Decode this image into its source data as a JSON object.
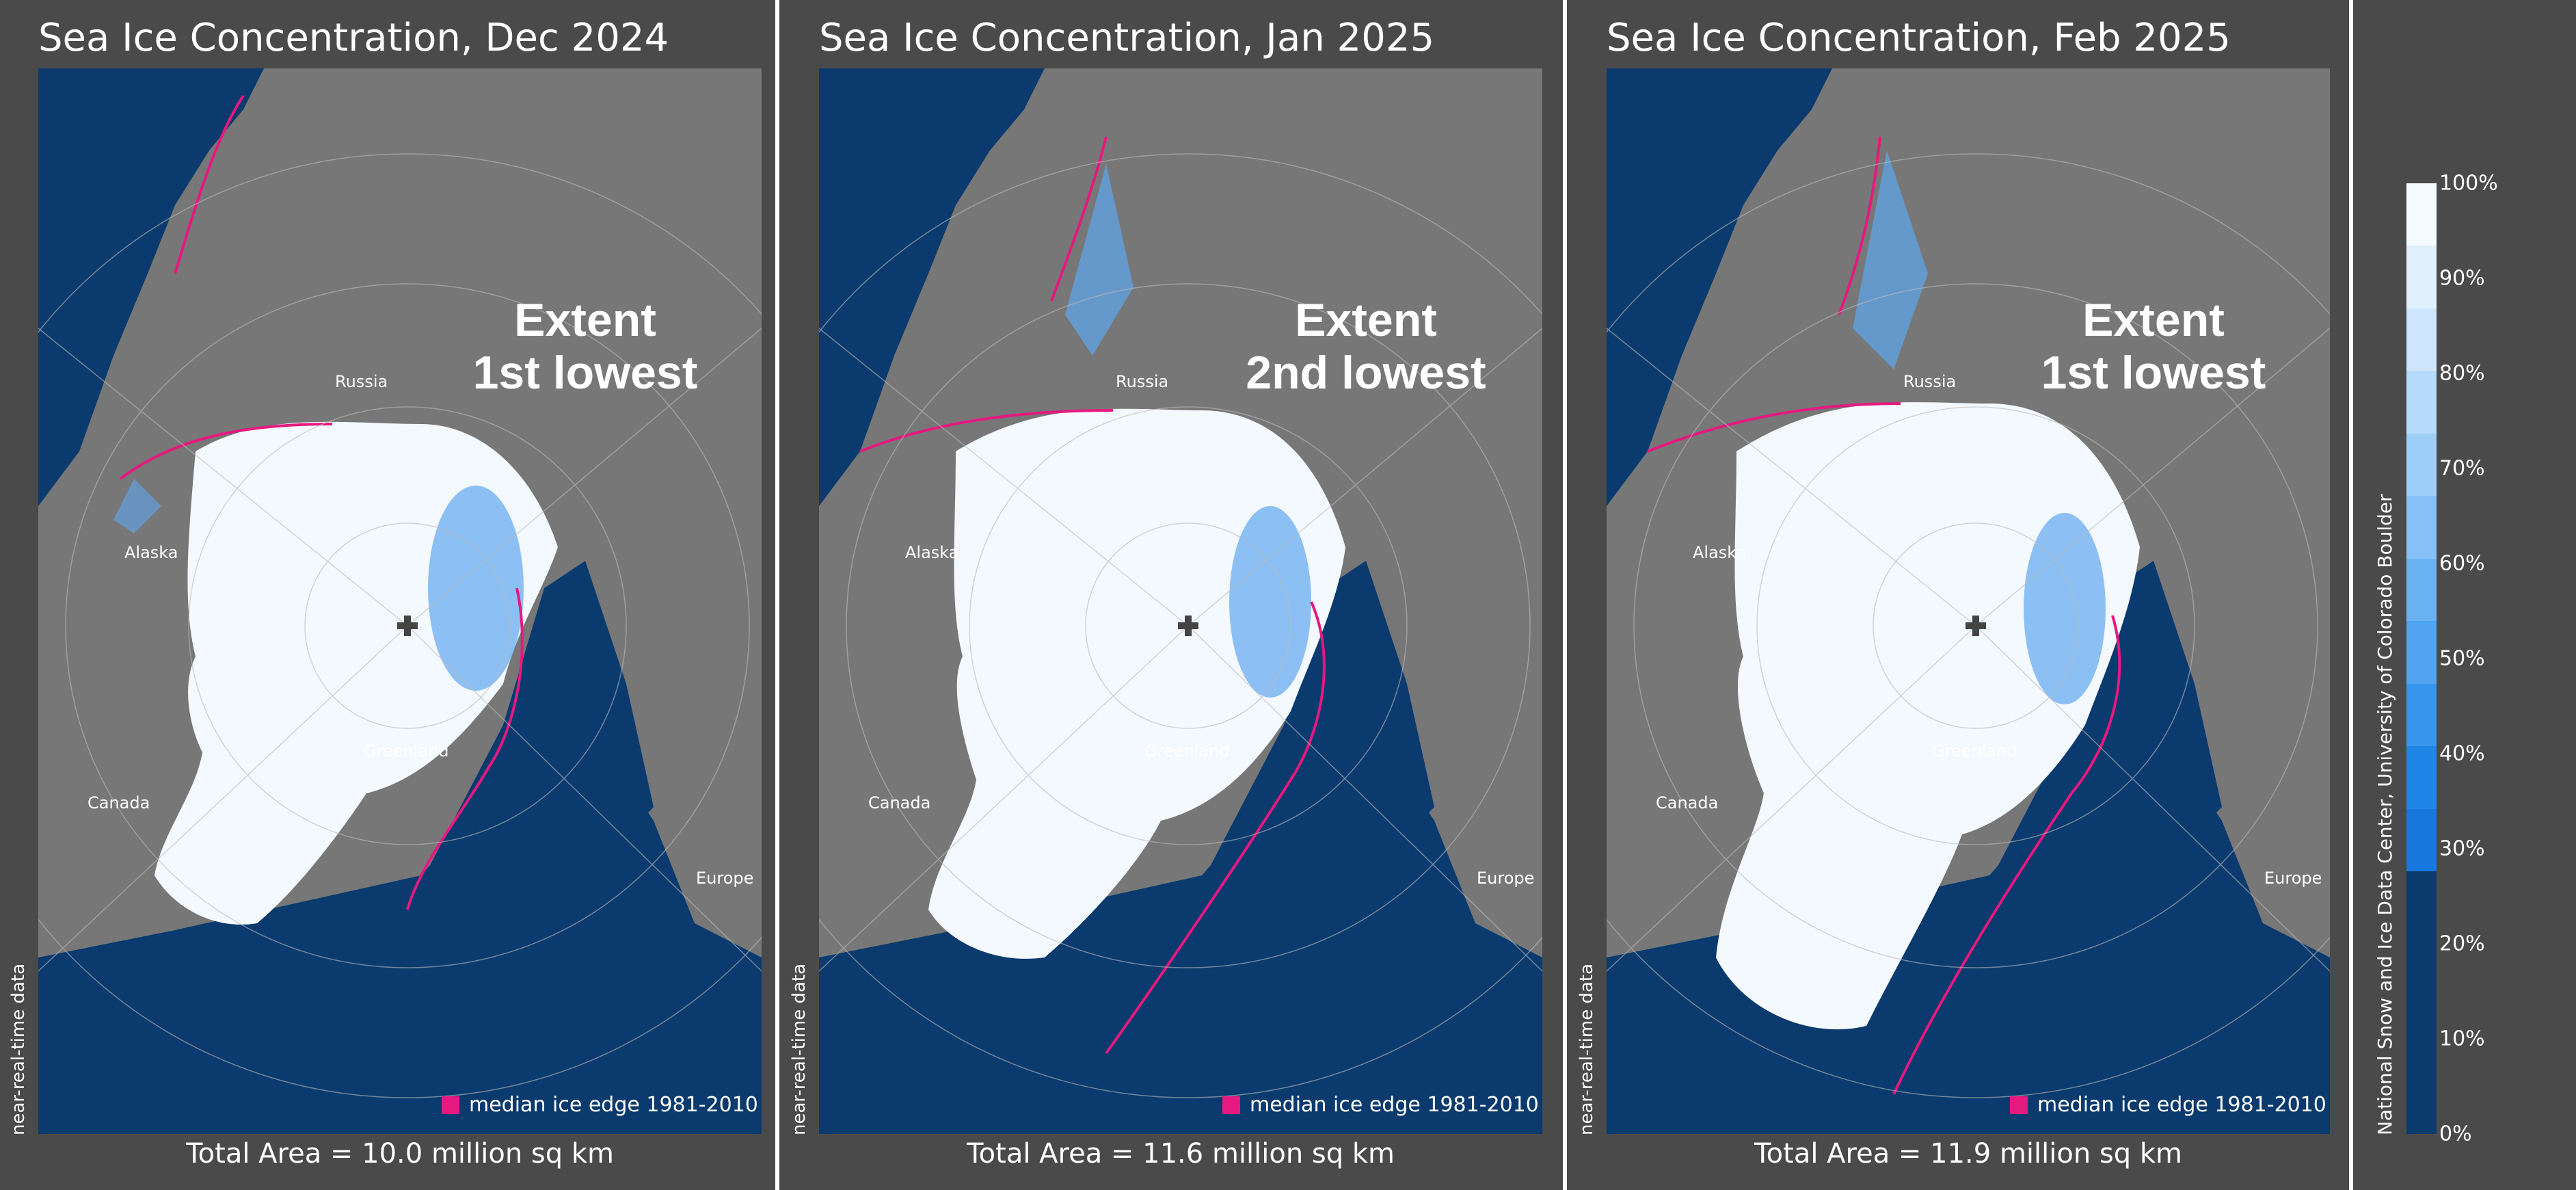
{
  "panels": [
    {
      "title": "Sea Ice Concentration, Dec 2024",
      "extent_line1": "Extent",
      "extent_line2": "1st lowest",
      "total_area": "Total Area = 10.0 million sq km"
    },
    {
      "title": "Sea Ice Concentration, Jan 2025",
      "extent_line1": "Extent",
      "extent_line2": "2nd lowest",
      "total_area": "Total Area = 11.6 million sq km"
    },
    {
      "title": "Sea Ice Concentration, Feb 2025",
      "extent_line1": "Extent",
      "extent_line2": "1st lowest",
      "total_area": "Total Area = 11.9 million sq km"
    }
  ],
  "regions": {
    "russia": "Russia",
    "alaska": "Alaska",
    "greenland": "Greenland",
    "canada": "Canada",
    "europe": "Europe"
  },
  "legend": "median ice edge 1981-2010",
  "nrt_label": "near-real-time data",
  "colorbar": {
    "labels": [
      "100%",
      "90%",
      "80%",
      "70%",
      "60%",
      "50%",
      "40%",
      "30%",
      "20%",
      "10%",
      "0%"
    ]
  },
  "credit": "National Snow and Ice Data Center, University of Colorado Boulder",
  "colors": {
    "background": "#4a4a4a",
    "land": "#777777",
    "ocean": "#0a3a6e",
    "ice": "#f4f9ff",
    "median_edge": "#e5197f"
  }
}
